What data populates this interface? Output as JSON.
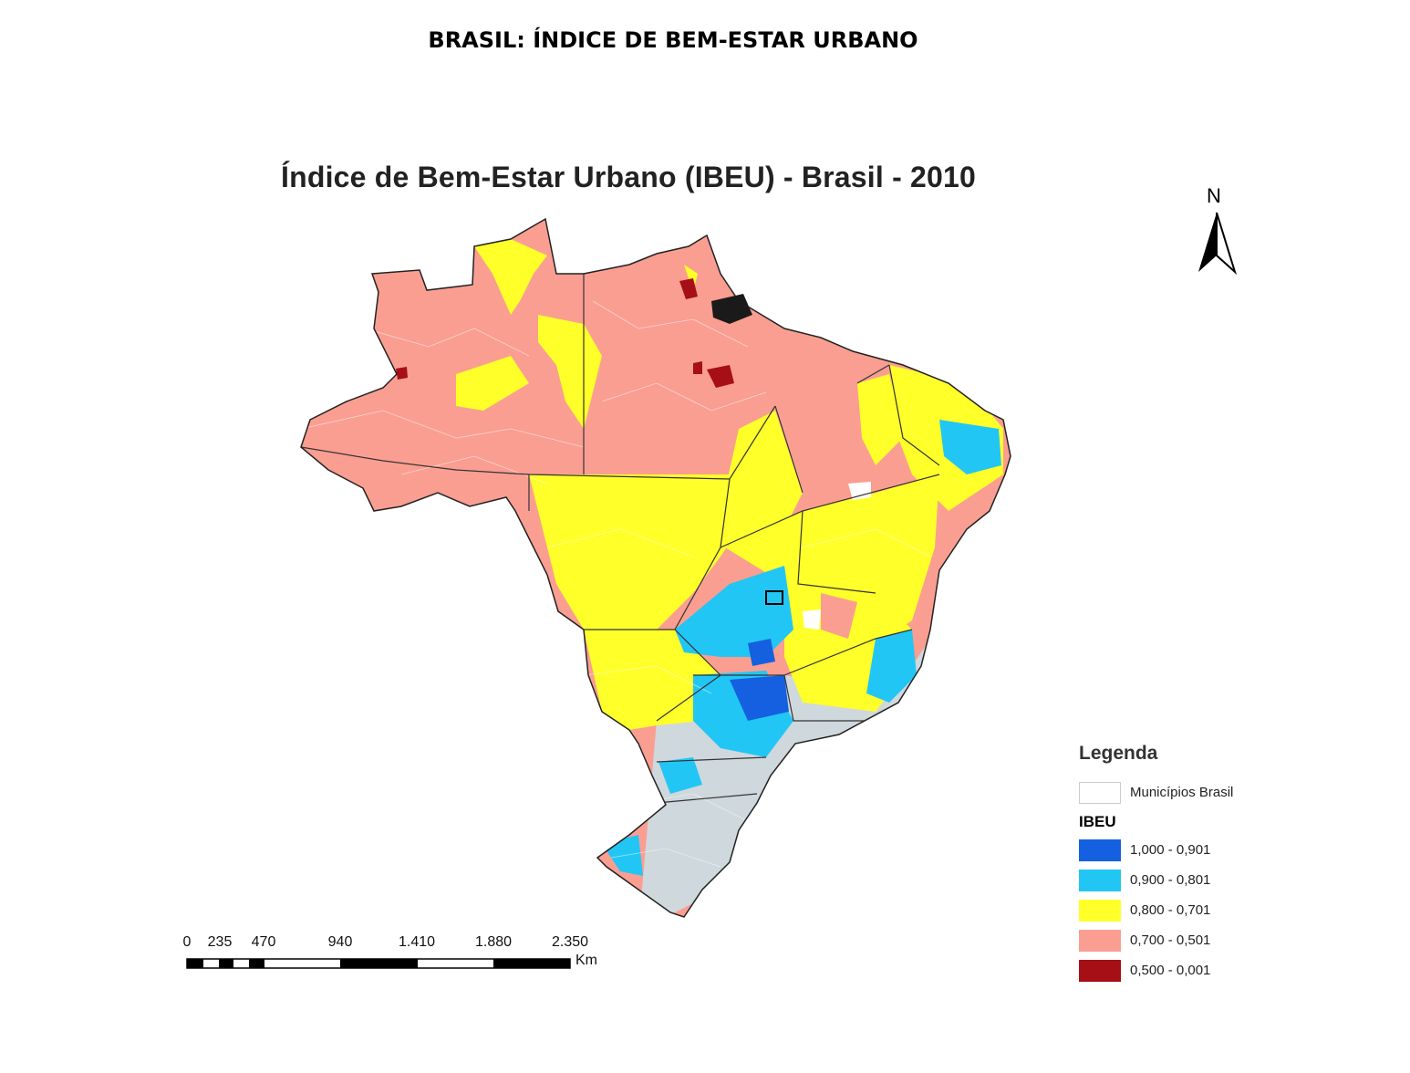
{
  "page_heading": "BRASIL: ÍNDICE DE BEM-ESTAR URBANO",
  "map_title": "Índice de Bem-Estar Urbano (IBEU) - Brasil - 2010",
  "north_arrow": {
    "letter": "N",
    "icon": "north-arrow-icon"
  },
  "legend": {
    "title": "Legenda",
    "layer_label": "Municípios Brasil",
    "index_label": "IBEU",
    "classes": [
      {
        "label": "1,000 - 0,901",
        "color": "#1560e0"
      },
      {
        "label": "0,900 - 0,801",
        "color": "#22c6f5"
      },
      {
        "label": "0,800 - 0,701",
        "color": "#ffff2a"
      },
      {
        "label": "0,700 - 0,501",
        "color": "#fa9e92"
      },
      {
        "label": "0,500 - 0,001",
        "color": "#a50f15"
      }
    ]
  },
  "scale_bar": {
    "ticks": [
      "0",
      "235",
      "470",
      "940",
      "1.410",
      "1.880",
      "2.350"
    ],
    "unit": "Km"
  }
}
